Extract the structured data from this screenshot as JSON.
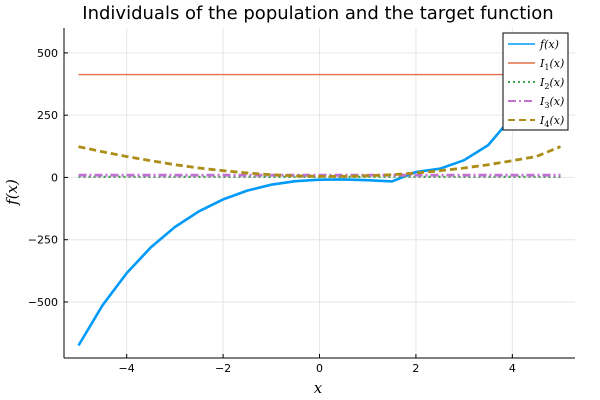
{
  "chart_data": {
    "type": "line",
    "title": "Individuals of the population and the target function",
    "xlabel": "x",
    "ylabel": "f(x)",
    "xlim": [
      -5.3,
      5.3
    ],
    "ylim": [
      -725,
      600
    ],
    "xticks": [
      -4,
      -2,
      0,
      2,
      4
    ],
    "xtick_labels": [
      "−4",
      "−2",
      "0",
      "2",
      "4"
    ],
    "yticks": [
      -500,
      -250,
      0,
      250,
      500
    ],
    "ytick_labels": [
      "−500",
      "−250",
      "0",
      "250",
      "500"
    ],
    "grid": true,
    "legend": "top-right",
    "series": [
      {
        "name": "f(x)",
        "color": "#009af9",
        "dash": "solid",
        "x": [
          -5,
          -4.5,
          -4,
          -3.5,
          -3,
          -2.5,
          -2,
          -1.5,
          -1,
          -0.5,
          0,
          0.5,
          1,
          1.5,
          2,
          2.5,
          3,
          3.5,
          4
        ],
        "y": [
          -675,
          -513,
          -384,
          -281,
          -199,
          -136,
          -88,
          -53,
          -29,
          -15,
          -9,
          -8,
          -11,
          -16,
          22,
          35,
          69,
          130,
          244
        ]
      },
      {
        "name": "I1(x)",
        "color": "#e26f46",
        "dash": "solid",
        "x": [
          -5,
          5
        ],
        "y": [
          413,
          413
        ]
      },
      {
        "name": "I2(x)",
        "color": "#3da44d",
        "dash": "dot",
        "x": [
          -5,
          5
        ],
        "y": [
          2,
          2
        ]
      },
      {
        "name": "I3(x)",
        "color": "#c271d2",
        "dash": "dashdot",
        "x": [
          -5,
          5
        ],
        "y": [
          9,
          9
        ]
      },
      {
        "name": "I4(x)",
        "color": "#ac8d18",
        "dash": "dash",
        "x": [
          -5,
          -4.5,
          -4,
          -3.5,
          -3,
          -2.5,
          -2,
          -1.5,
          -1,
          -0.5,
          0,
          0.5,
          1,
          1.5,
          2,
          2.5,
          3,
          3.5,
          4,
          4.5,
          5
        ],
        "y": [
          124,
          103,
          84,
          67,
          51,
          38,
          27,
          18,
          11,
          6,
          4,
          4,
          7,
          11,
          18,
          27,
          38,
          51,
          67,
          84,
          124
        ]
      }
    ],
    "legend_labels": [
      {
        "base": "f",
        "sub": "",
        "arg": "(x)"
      },
      {
        "base": "I",
        "sub": "1",
        "arg": "(x)"
      },
      {
        "base": "I",
        "sub": "2",
        "arg": "(x)"
      },
      {
        "base": "I",
        "sub": "3",
        "arg": "(x)"
      },
      {
        "base": "I",
        "sub": "4",
        "arg": "(x)"
      }
    ]
  }
}
